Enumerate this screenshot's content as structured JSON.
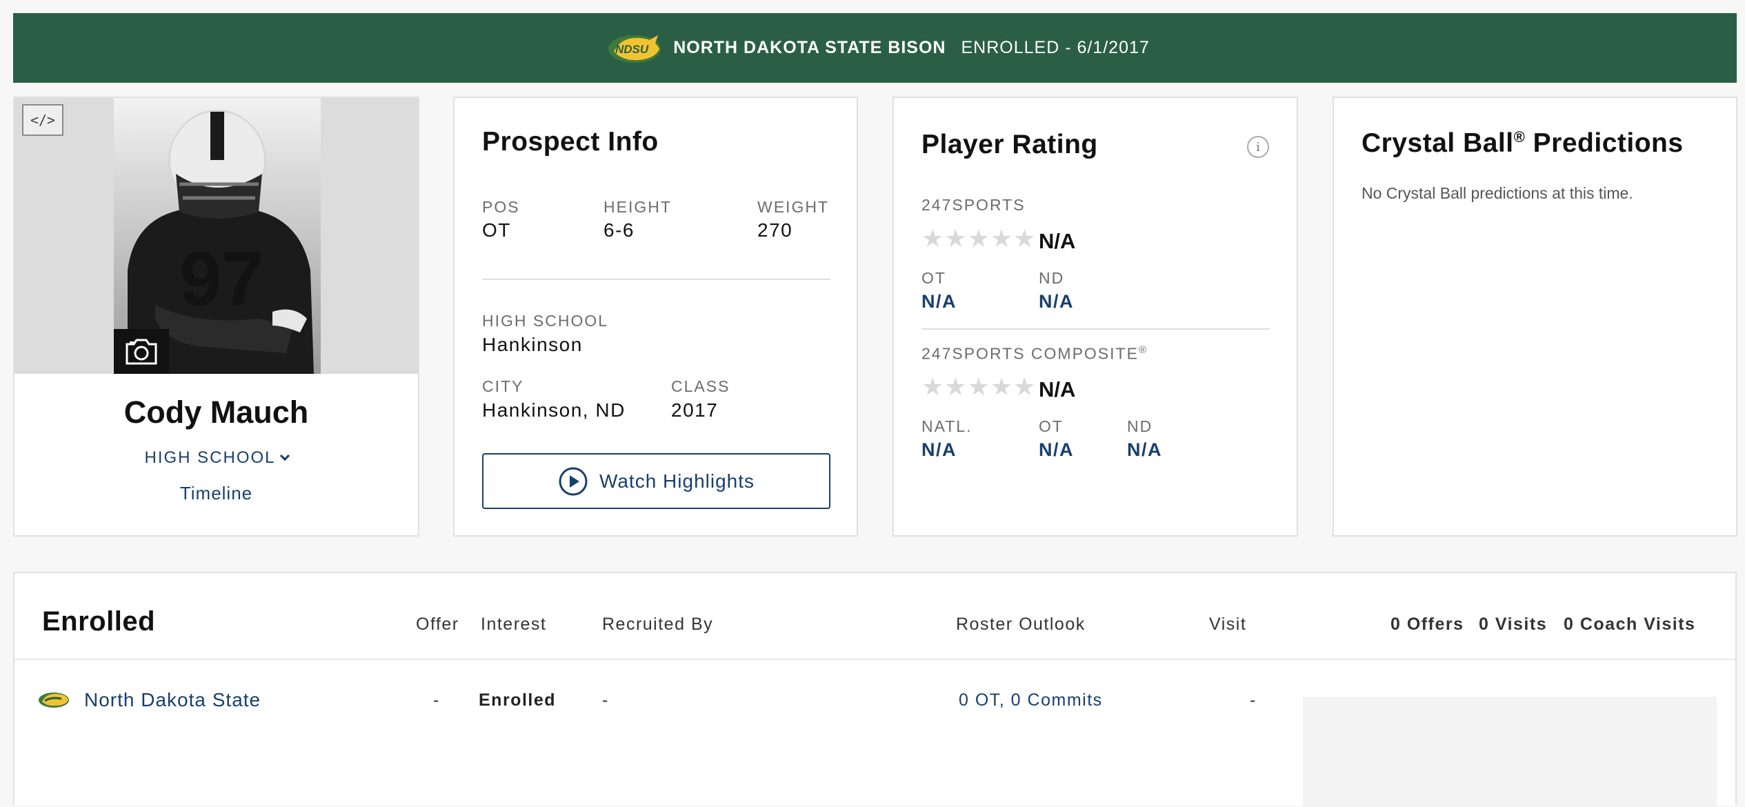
{
  "banner": {
    "logo_text": "NDSU",
    "team": "NORTH DAKOTA STATE BISON",
    "status": "ENROLLED - 6/1/2017"
  },
  "profile": {
    "embed_label": "</>",
    "jersey_number": "97",
    "name": "Cody Mauch",
    "school_dropdown": "HIGH SCHOOL",
    "timeline": "Timeline"
  },
  "prospect": {
    "title": "Prospect Info",
    "pos_label": "POS",
    "pos": "OT",
    "height_label": "HEIGHT",
    "height": "6-6",
    "weight_label": "WEIGHT",
    "weight": "270",
    "school_label": "HIGH SCHOOL",
    "school": "Hankinson",
    "city_label": "CITY",
    "city": "Hankinson, ND",
    "class_label": "CLASS",
    "class": "2017",
    "watch_label": "Watch Highlights"
  },
  "rating": {
    "title": "Player Rating",
    "info": "i",
    "sports247": {
      "label": "247SPORTS",
      "stars": 0,
      "value": "N/A",
      "ot_label": "OT",
      "ot": "N/A",
      "nd_label": "ND",
      "nd": "N/A"
    },
    "composite": {
      "label": "247SPORTS COMPOSITE",
      "reg": "®",
      "stars": 0,
      "value": "N/A",
      "natl_label": "NATL.",
      "natl": "N/A",
      "ot_label": "OT",
      "ot": "N/A",
      "nd_label": "ND",
      "nd": "N/A"
    }
  },
  "crystal": {
    "title": "Crystal Ball",
    "reg": "®",
    "title_rest": " Predictions",
    "message": "No Crystal Ball predictions at this time."
  },
  "enrolled": {
    "title": "Enrolled",
    "columns": {
      "offer": "Offer",
      "interest": "Interest",
      "recruited_by": "Recruited By",
      "roster_outlook": "Roster Outlook",
      "visit": "Visit"
    },
    "summary": {
      "offers": "0 Offers",
      "visits": "0 Visits",
      "coach_visits": "0 Coach Visits"
    },
    "row": {
      "school": "North Dakota State",
      "offer": "-",
      "interest": "Enrolled",
      "recruited_by": "-",
      "roster_outlook": "0 OT, 0 Commits",
      "visit": "-"
    }
  },
  "colors": {
    "banner_green": "#2a5f45",
    "link_blue": "#173f6e",
    "star_gray": "#d9d9d9"
  }
}
